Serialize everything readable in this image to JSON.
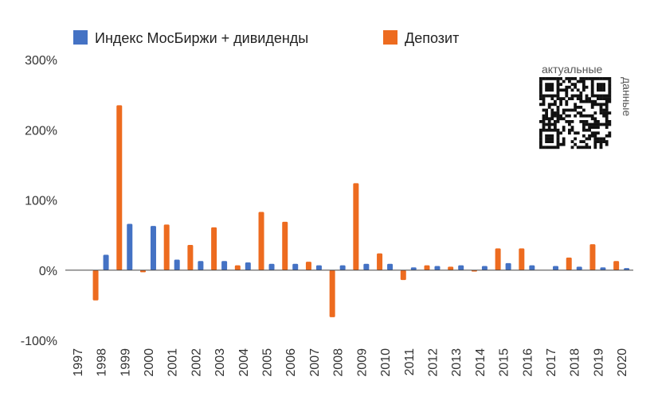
{
  "chart_data": {
    "type": "bar",
    "categories": [
      "1997",
      "1998",
      "1999",
      "2000",
      "2001",
      "2002",
      "2003",
      "2004",
      "2005",
      "2006",
      "2007",
      "2008",
      "2009",
      "2010",
      "2011",
      "2012",
      "2013",
      "2014",
      "2015",
      "2016",
      "2017",
      "2018",
      "2019",
      "2020"
    ],
    "series": [
      {
        "name": "Индекс МосБиржи + дивиденды",
        "color": "#4472C4",
        "values": [
          null,
          22,
          66,
          63,
          15,
          13,
          13,
          11,
          9,
          9,
          7,
          7,
          9,
          9,
          4,
          6,
          7,
          6,
          10,
          7,
          6,
          5,
          4,
          3
        ]
      },
      {
        "name": "Депозит",
        "color": "#ED6B1F",
        "values": [
          null,
          -43,
          235,
          -3,
          65,
          36,
          61,
          7,
          83,
          69,
          12,
          -67,
          124,
          24,
          -14,
          7,
          5,
          -2,
          31,
          31,
          null,
          18,
          37,
          13
        ]
      }
    ],
    "y_ticks": [
      "300%",
      "200%",
      "100%",
      "0%",
      "-100%"
    ],
    "ylim": [
      -100,
      300
    ],
    "title": "",
    "xlabel": "",
    "ylabel": "",
    "grid": false,
    "legend_position": "top"
  },
  "watermark": {
    "label_top": "актуальные",
    "label_side": "данные"
  }
}
